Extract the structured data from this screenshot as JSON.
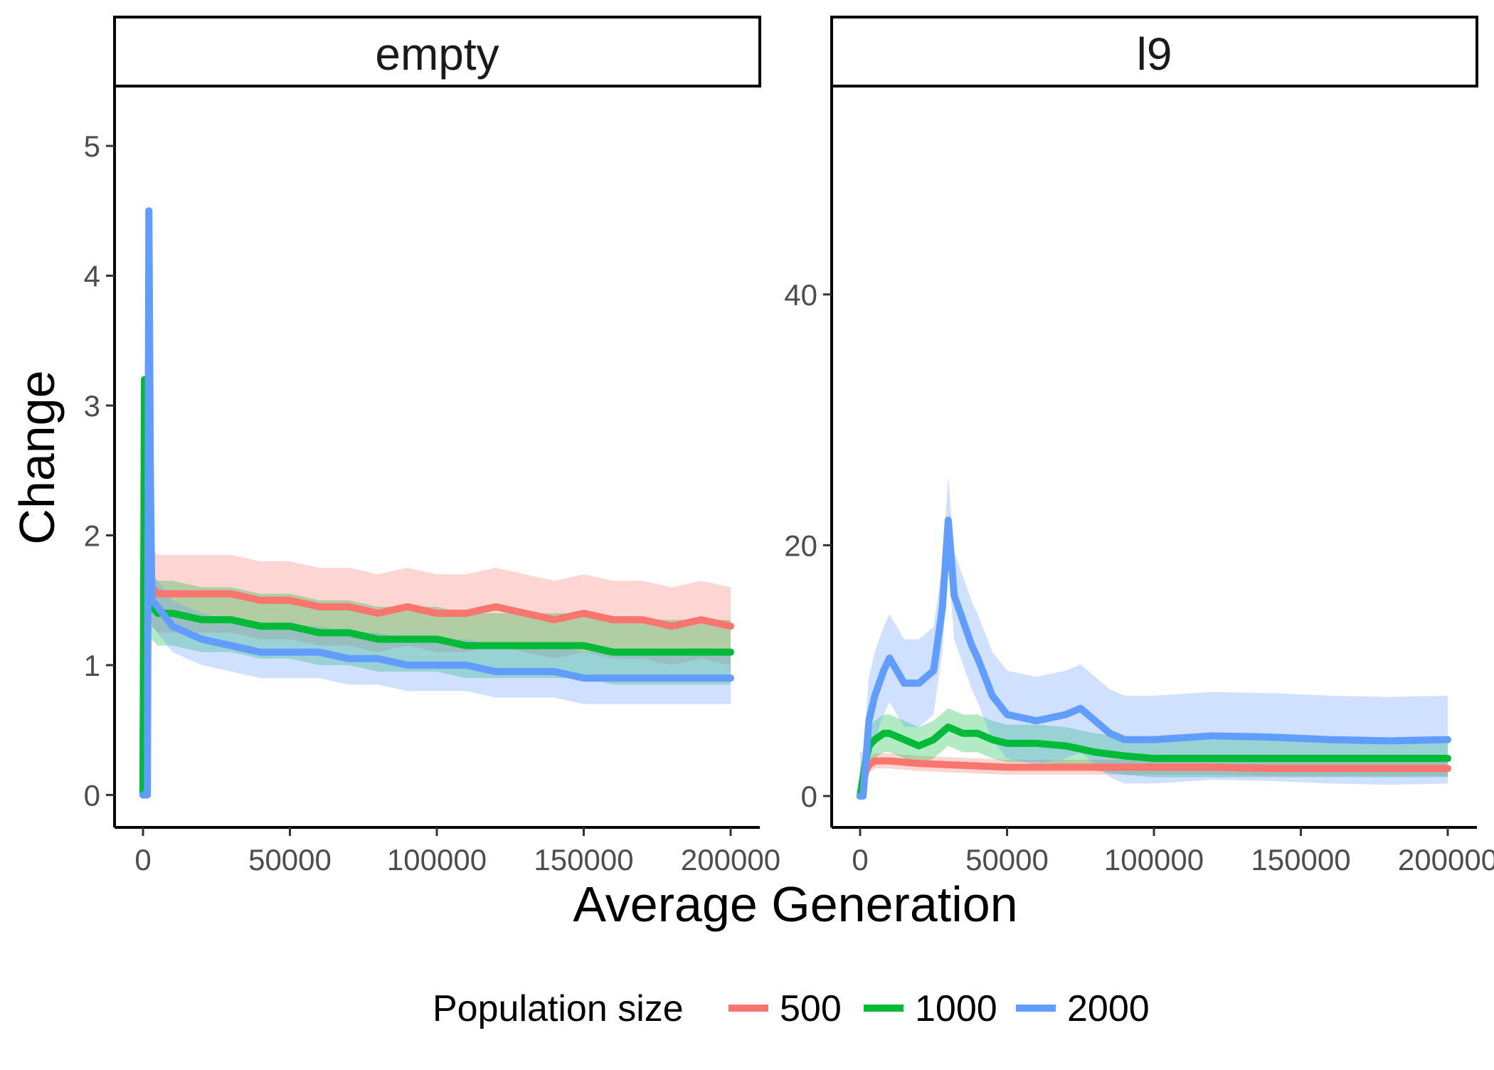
{
  "chart_data": {
    "type": "line",
    "xlabel": "Average Generation",
    "ylabel": "Change",
    "legend": {
      "title": "Population size",
      "position": "bottom",
      "entries": [
        {
          "label": "500",
          "color": "#F8766D"
        },
        {
          "label": "1000",
          "color": "#00BA38"
        },
        {
          "label": "2000",
          "color": "#619CFF"
        }
      ]
    },
    "x_ticks": [
      "0",
      "50000",
      "100000",
      "150000",
      "200000"
    ],
    "xlim": [
      0,
      200000
    ],
    "grid": false,
    "panels": [
      {
        "strip": "empty",
        "ylim": [
          -0.25,
          5.45
        ],
        "y_ticks": [
          "0",
          "1",
          "2",
          "3",
          "4",
          "5"
        ],
        "series": [
          {
            "name": "500",
            "color": "#F8766D",
            "x": [
              0,
              500,
              1000,
              2000,
              3000,
              5000,
              10000,
              20000,
              30000,
              40000,
              50000,
              60000,
              70000,
              80000,
              90000,
              100000,
              110000,
              120000,
              130000,
              140000,
              150000,
              160000,
              170000,
              180000,
              190000,
              200000
            ],
            "y": [
              0,
              2.8,
              1.6,
              1.7,
              1.6,
              1.55,
              1.55,
              1.55,
              1.55,
              1.5,
              1.5,
              1.45,
              1.45,
              1.4,
              1.45,
              1.4,
              1.4,
              1.45,
              1.4,
              1.35,
              1.4,
              1.35,
              1.35,
              1.3,
              1.35,
              1.3
            ],
            "band": 0.3
          },
          {
            "name": "1000",
            "color": "#00BA38",
            "x": [
              0,
              500,
              1000,
              2000,
              3000,
              5000,
              10000,
              20000,
              30000,
              40000,
              50000,
              60000,
              70000,
              80000,
              90000,
              100000,
              110000,
              120000,
              130000,
              140000,
              150000,
              160000,
              170000,
              180000,
              190000,
              200000
            ],
            "y": [
              0,
              3.2,
              1.6,
              1.5,
              1.45,
              1.4,
              1.4,
              1.35,
              1.35,
              1.3,
              1.3,
              1.25,
              1.25,
              1.2,
              1.2,
              1.2,
              1.15,
              1.15,
              1.15,
              1.15,
              1.15,
              1.1,
              1.1,
              1.1,
              1.1,
              1.1
            ],
            "band": 0.25
          },
          {
            "name": "2000",
            "color": "#619CFF",
            "x": [
              0,
              1500,
              2000,
              2500,
              3000,
              5000,
              10000,
              20000,
              30000,
              40000,
              50000,
              60000,
              70000,
              80000,
              90000,
              100000,
              110000,
              120000,
              130000,
              140000,
              150000,
              160000,
              170000,
              180000,
              190000,
              200000
            ],
            "y": [
              0,
              0,
              4.5,
              2.5,
              1.5,
              1.45,
              1.3,
              1.2,
              1.15,
              1.1,
              1.1,
              1.1,
              1.05,
              1.05,
              1.0,
              1.0,
              1.0,
              0.95,
              0.95,
              0.95,
              0.9,
              0.9,
              0.9,
              0.9,
              0.9,
              0.9
            ],
            "band": 0.2
          }
        ]
      },
      {
        "strip": "l9",
        "ylim": [
          -2.5,
          56.5
        ],
        "y_ticks": [
          "0",
          "20",
          "40"
        ],
        "series": [
          {
            "name": "500",
            "color": "#F8766D",
            "x": [
              0,
              1000,
              2000,
              3000,
              5000,
              10000,
              20000,
              30000,
              40000,
              50000,
              60000,
              80000,
              100000,
              120000,
              140000,
              160000,
              180000,
              200000
            ],
            "y": [
              0,
              1.0,
              2.0,
              2.5,
              2.8,
              2.8,
              2.6,
              2.5,
              2.4,
              2.3,
              2.3,
              2.3,
              2.3,
              2.3,
              2.2,
              2.2,
              2.2,
              2.2
            ],
            "band": 0.6
          },
          {
            "name": "1000",
            "color": "#00BA38",
            "x": [
              0,
              1000,
              2000,
              3000,
              5000,
              8000,
              10000,
              15000,
              20000,
              25000,
              30000,
              35000,
              40000,
              45000,
              50000,
              60000,
              70000,
              80000,
              90000,
              100000,
              120000,
              140000,
              160000,
              180000,
              200000
            ],
            "y": [
              0,
              1.5,
              3.0,
              4.0,
              4.5,
              5.0,
              5.0,
              4.5,
              4.0,
              4.5,
              5.5,
              5.0,
              5.0,
              4.5,
              4.2,
              4.2,
              4.0,
              3.5,
              3.2,
              3.0,
              3.0,
              3.0,
              3.0,
              3.0,
              3.0
            ],
            "band": 1.5
          },
          {
            "name": "2000",
            "color": "#619CFF",
            "x": [
              0,
              1000,
              2000,
              3000,
              5000,
              8000,
              10000,
              15000,
              20000,
              25000,
              28000,
              30000,
              32000,
              35000,
              38000,
              40000,
              45000,
              50000,
              60000,
              70000,
              75000,
              80000,
              85000,
              90000,
              100000,
              120000,
              140000,
              160000,
              180000,
              200000
            ],
            "y": [
              0,
              0,
              3.0,
              6.0,
              8.0,
              10.0,
              11.0,
              9.0,
              9.0,
              10.0,
              15.0,
              22.0,
              16.0,
              14.0,
              12.0,
              11.0,
              8.0,
              6.5,
              6.0,
              6.5,
              7.0,
              6.0,
              5.0,
              4.5,
              4.5,
              4.8,
              4.7,
              4.5,
              4.4,
              4.5
            ],
            "band": 3.5
          }
        ]
      }
    ]
  }
}
